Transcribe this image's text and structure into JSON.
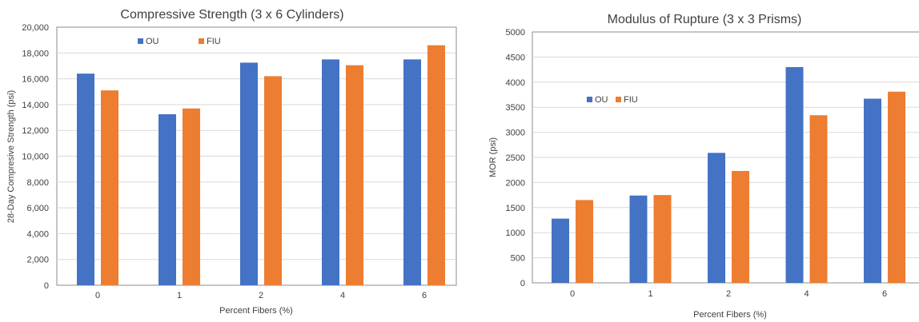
{
  "chart_data": [
    {
      "type": "bar",
      "title": "Compressive Strength (3 x 6 Cylinders)",
      "xlabel": "Percent Fibers (%)",
      "ylabel": "28-Day Compresive Strength (psi)",
      "categories": [
        "0",
        "1",
        "2",
        "4",
        "6"
      ],
      "series": [
        {
          "name": "OU",
          "color": "#4472C4",
          "values": [
            16400,
            13250,
            17250,
            17500,
            17500
          ]
        },
        {
          "name": "FIU",
          "color": "#ED7D31",
          "values": [
            15100,
            13700,
            16200,
            17050,
            18600
          ]
        }
      ],
      "ylim": [
        0,
        20000
      ],
      "yticks": [
        "0",
        "2,000",
        "4,000",
        "6,000",
        "8,000",
        "10,000",
        "12,000",
        "14,000",
        "16,000",
        "18,000",
        "20,000"
      ],
      "grid": true,
      "legend_position": "top-left"
    },
    {
      "type": "bar",
      "title": "Modulus of Rupture (3 x 3 Prisms)",
      "xlabel": "Percent Fibers (%)",
      "ylabel": "MOR (psi)",
      "categories": [
        "0",
        "1",
        "2",
        "4",
        "6"
      ],
      "series": [
        {
          "name": "OU",
          "color": "#4472C4",
          "values": [
            1280,
            1740,
            2590,
            4300,
            3670
          ]
        },
        {
          "name": "FIU",
          "color": "#ED7D31",
          "values": [
            1650,
            1750,
            2230,
            3340,
            3810
          ]
        }
      ],
      "ylim": [
        0,
        5000
      ],
      "yticks": [
        "0",
        "500",
        "1000",
        "1500",
        "2000",
        "2500",
        "3000",
        "3500",
        "4000",
        "4500",
        "5000"
      ],
      "grid": true,
      "legend_position": "top-left"
    }
  ]
}
